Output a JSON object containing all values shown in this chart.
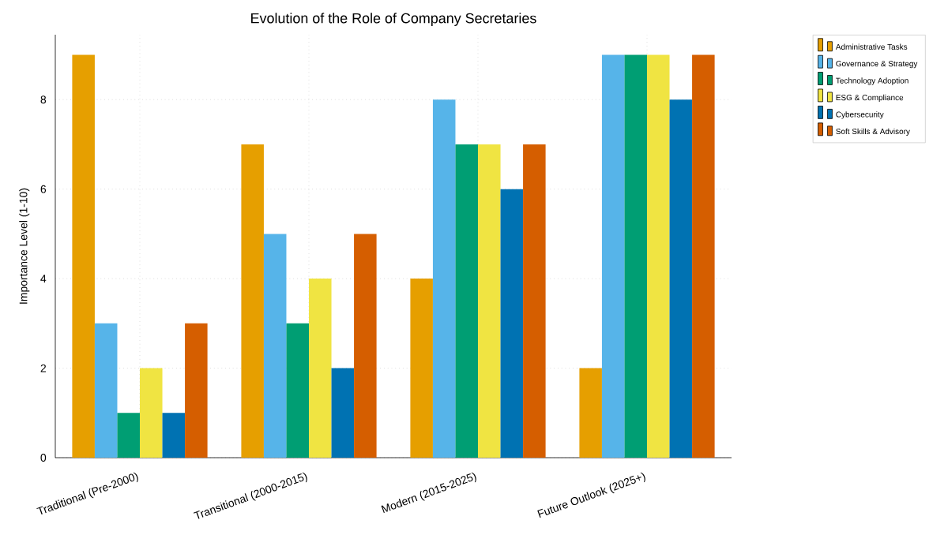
{
  "chart_data": {
    "type": "bar",
    "title": "Evolution of the Role of Company Secretaries",
    "ylabel": "Importance Level (1-10)",
    "categories": [
      "Traditional (Pre-2000)",
      "Transitional (2000-2015)",
      "Modern (2015-2025)",
      "Future Outlook (2025+)"
    ],
    "series": [
      {
        "name": "Administrative Tasks",
        "color": "#e69f00",
        "values": [
          9,
          7,
          4,
          2
        ]
      },
      {
        "name": "Governance & Strategy",
        "color": "#56b4e9",
        "values": [
          3,
          5,
          8,
          9
        ]
      },
      {
        "name": "Technology Adoption",
        "color": "#009e73",
        "values": [
          1,
          3,
          7,
          9
        ]
      },
      {
        "name": "ESG & Compliance",
        "color": "#f0e442",
        "values": [
          2,
          4,
          7,
          9
        ]
      },
      {
        "name": "Cybersecurity",
        "color": "#0072b2",
        "values": [
          1,
          2,
          6,
          8
        ]
      },
      {
        "name": "Soft Skills & Advisory",
        "color": "#d55e00",
        "values": [
          3,
          5,
          7,
          9
        ]
      }
    ],
    "ylim": [
      0,
      9.45
    ],
    "yticks": [
      0,
      2,
      4,
      6,
      8
    ],
    "grid": true,
    "legend": "top right"
  }
}
